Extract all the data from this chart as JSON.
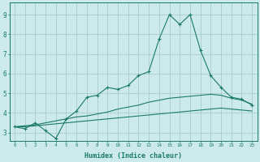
{
  "xlabel": "Humidex (Indice chaleur)",
  "bg_color": "#cceaea",
  "grid_color": "#aacccc",
  "line_color": "#1a7a6a",
  "xlim": [
    -0.5,
    23.5
  ],
  "ylim": [
    2.6,
    9.6
  ],
  "xticks": [
    0,
    1,
    2,
    3,
    4,
    5,
    6,
    7,
    8,
    9,
    10,
    11,
    12,
    13,
    14,
    15,
    16,
    17,
    18,
    19,
    20,
    21,
    22,
    23
  ],
  "yticks": [
    3,
    4,
    5,
    6,
    7,
    8,
    9
  ],
  "series1_x": [
    0,
    1,
    2,
    3,
    4,
    5,
    6,
    7,
    8,
    9,
    10,
    11,
    12,
    13,
    14,
    15,
    16,
    17,
    18,
    19,
    20,
    21,
    22,
    23
  ],
  "series1_y": [
    3.3,
    3.2,
    3.5,
    3.1,
    2.7,
    3.7,
    4.1,
    4.8,
    4.9,
    5.3,
    5.2,
    5.4,
    5.9,
    6.1,
    7.75,
    9.0,
    8.5,
    9.0,
    7.2,
    5.9,
    5.3,
    4.8,
    4.7,
    4.4
  ],
  "series2_x": [
    0,
    1,
    2,
    3,
    4,
    5,
    6,
    7,
    8,
    9,
    10,
    11,
    12,
    13,
    14,
    15,
    16,
    17,
    18,
    19,
    20,
    21,
    22,
    23
  ],
  "series2_y": [
    3.3,
    3.35,
    3.4,
    3.5,
    3.6,
    3.7,
    3.8,
    3.85,
    3.95,
    4.05,
    4.2,
    4.3,
    4.4,
    4.55,
    4.65,
    4.75,
    4.8,
    4.85,
    4.9,
    4.95,
    4.9,
    4.75,
    4.65,
    4.45
  ],
  "series3_x": [
    0,
    1,
    2,
    3,
    4,
    5,
    6,
    7,
    8,
    9,
    10,
    11,
    12,
    13,
    14,
    15,
    16,
    17,
    18,
    19,
    20,
    21,
    22,
    23
  ],
  "series3_y": [
    3.3,
    3.3,
    3.35,
    3.4,
    3.45,
    3.5,
    3.55,
    3.6,
    3.65,
    3.7,
    3.75,
    3.8,
    3.85,
    3.9,
    3.95,
    4.0,
    4.05,
    4.1,
    4.15,
    4.2,
    4.25,
    4.2,
    4.15,
    4.1
  ]
}
